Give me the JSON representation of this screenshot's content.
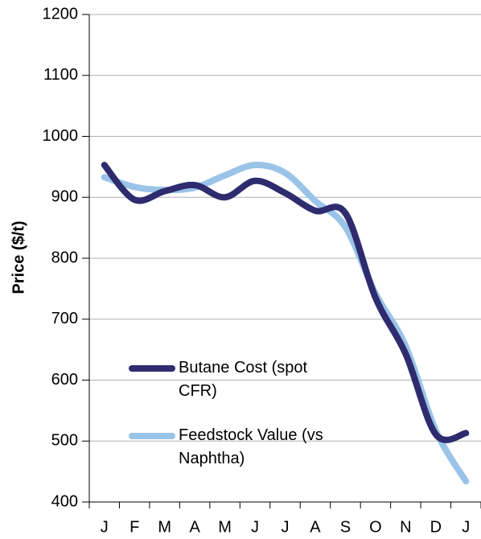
{
  "chart_data": {
    "type": "line",
    "ylabel": "Price ($/t)",
    "categories": [
      "J",
      "F",
      "M",
      "A",
      "M",
      "J",
      "J",
      "A",
      "S",
      "O",
      "N",
      "D",
      "J"
    ],
    "series": [
      {
        "name": "Butane Cost (spot CFR)",
        "color": "#2e2b6e",
        "values": [
          953,
          896,
          910,
          920,
          900,
          927,
          907,
          878,
          874,
          735,
          643,
          511,
          513
        ]
      },
      {
        "name": "Feedstock Value (vs Naphtha)",
        "color": "#9ac3e8",
        "values": [
          933,
          917,
          912,
          916,
          936,
          953,
          940,
          894,
          851,
          742,
          656,
          517,
          434
        ]
      }
    ],
    "ylim": [
      400,
      1200
    ],
    "yticks": [
      400,
      500,
      600,
      700,
      800,
      900,
      1000,
      1100,
      1200
    ],
    "grid": true,
    "legend": "lower-left"
  }
}
